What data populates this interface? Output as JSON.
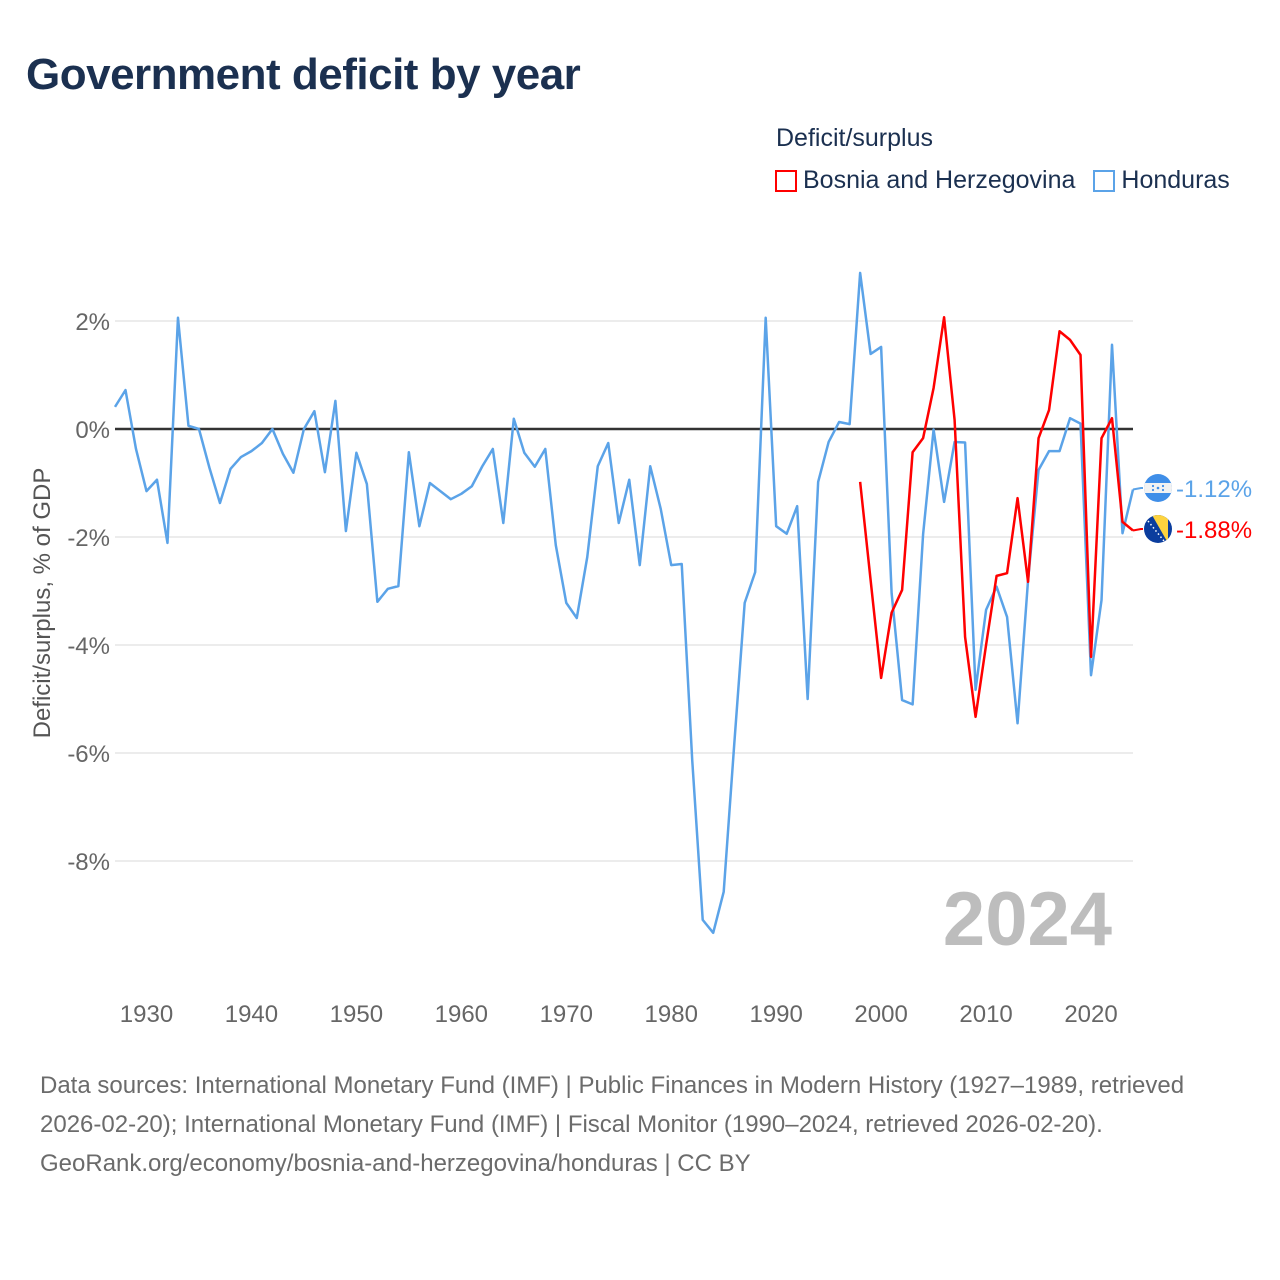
{
  "title": "Government deficit by year",
  "legend": {
    "title": "Deficit/surplus",
    "items": [
      {
        "label": "Bosnia and Herzegovina",
        "color": "#ff0000"
      },
      {
        "label": "Honduras",
        "color": "#5ba3e8"
      }
    ]
  },
  "footer": {
    "sources": "Data sources: International Monetary Fund (IMF) | Public Finances in Modern History (1927–1989, retrieved 2026-02-20); International Monetary Fund (IMF) | Fiscal Monitor (1990–2024, retrieved 2026-02-20).",
    "attribution": "GeoRank.org/economy/bosnia-and-herzegovina/honduras | CC BY"
  },
  "chart_data": {
    "type": "line",
    "title": "Government deficit by year",
    "xlabel": "",
    "ylabel": "Deficit/surplus, % of GDP",
    "xlim": [
      1927,
      2024
    ],
    "ylim": [
      -10.4,
      3.4
    ],
    "x_ticks": [
      1930,
      1940,
      1950,
      1960,
      1970,
      1980,
      1990,
      2000,
      2010,
      2020
    ],
    "y_ticks": [
      2,
      0,
      -2,
      -4,
      -6,
      -8
    ],
    "y_tick_labels": [
      "2%",
      "0%",
      "-2%",
      "-4%",
      "-6%",
      "-8%"
    ],
    "grid": true,
    "legend_position": "top-right",
    "watermark_year": "2024",
    "series": [
      {
        "name": "Honduras",
        "color": "#5ba3e8",
        "end_label": "-1.12%",
        "start_year": 1927,
        "values": [
          0.41,
          0.72,
          -0.37,
          -1.15,
          -0.94,
          -2.11,
          2.06,
          0.06,
          0.0,
          -0.72,
          -1.37,
          -0.74,
          -0.52,
          -0.41,
          -0.26,
          0.0,
          -0.46,
          -0.81,
          0.0,
          0.33,
          -0.8,
          0.52,
          -1.89,
          -0.44,
          -1.02,
          -3.2,
          -2.96,
          -2.91,
          -0.43,
          -1.8,
          -1.0,
          -1.15,
          -1.3,
          -1.2,
          -1.06,
          -0.69,
          -0.37,
          -1.74,
          0.19,
          -0.44,
          -0.7,
          -0.37,
          -2.15,
          -3.22,
          -3.5,
          -2.37,
          -0.69,
          -0.26,
          -1.74,
          -0.94,
          -2.52,
          -0.69,
          -1.48,
          -2.52,
          -2.5,
          -6.13,
          -9.09,
          -9.33,
          -8.57,
          -5.85,
          -3.22,
          -2.65,
          2.06,
          -1.8,
          -1.94,
          -1.43,
          -5.0,
          -0.98,
          -0.24,
          0.13,
          0.09,
          2.89,
          1.39,
          1.52,
          -3.04,
          -5.02,
          -5.1,
          -1.95,
          -0.01,
          -1.35,
          -0.24,
          -0.25,
          -4.83,
          -3.35,
          -2.92,
          -3.48,
          -5.45,
          -2.8,
          -0.76,
          -0.41,
          -0.41,
          0.2,
          0.1,
          -4.56,
          -3.17,
          1.56,
          -1.93,
          -1.12
        ]
      },
      {
        "name": "Bosnia and Herzegovina",
        "color": "#ff0000",
        "end_label": "-1.88%",
        "start_year": 1998,
        "values": [
          -0.98,
          -2.8,
          -4.61,
          -3.4,
          -2.98,
          -0.43,
          -0.17,
          0.76,
          2.07,
          0.17,
          -3.85,
          -5.33,
          -4.0,
          -2.72,
          -2.67,
          -1.28,
          -2.83,
          -0.17,
          0.35,
          1.81,
          1.65,
          1.37,
          -4.22,
          -0.17,
          0.2,
          -1.72,
          -1.88
        ]
      }
    ]
  }
}
